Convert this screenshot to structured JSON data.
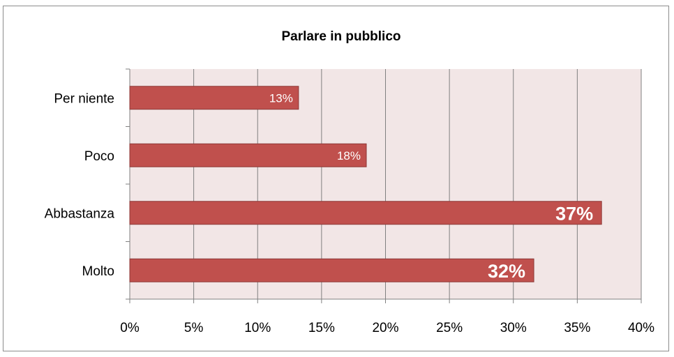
{
  "chart_data": {
    "type": "bar",
    "orientation": "horizontal",
    "title": "Parlare in pubblico",
    "categories": [
      "Per niente",
      "Poco",
      "Abbastanza",
      "Molto"
    ],
    "values": [
      13.2,
      18.5,
      36.9,
      31.6
    ],
    "data_labels": [
      "13%",
      "18%",
      "37%",
      "32%"
    ],
    "emphasized": [
      false,
      false,
      true,
      true
    ],
    "xlim": [
      0,
      40
    ],
    "xticks": [
      "0%",
      "5%",
      "10%",
      "15%",
      "20%",
      "25%",
      "30%",
      "35%",
      "40%"
    ],
    "grid": true,
    "legend": "none",
    "colors": {
      "bar": "#c0504d",
      "bar_border": "#8c3836",
      "plot_background": "#f2e6e6",
      "gridline": "#808080"
    }
  }
}
